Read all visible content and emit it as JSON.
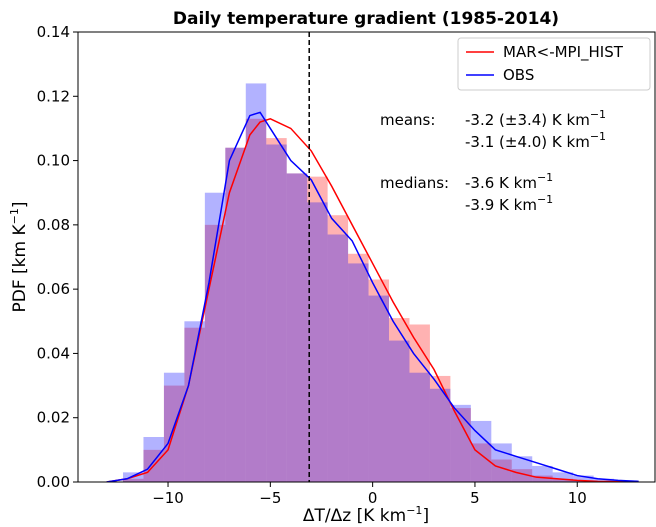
{
  "chart_data": {
    "type": "histogram",
    "title": "Daily temperature gradient (1985-2014)",
    "xlabel": {
      "text": "ΔT/Δz [K km",
      "sup": "−1",
      "tail": "]"
    },
    "ylabel": {
      "text": "PDF [km K",
      "sup": "−1",
      "tail": "]"
    },
    "xlim": [
      -14.4,
      13.8
    ],
    "ylim": [
      0,
      0.14
    ],
    "xticks": [
      {
        "value": -10,
        "label": "−10"
      },
      {
        "value": -5,
        "label": "−5"
      },
      0,
      5,
      10
    ],
    "yticks": [
      {
        "value": 0,
        "label": "0.00"
      },
      {
        "value": 0.02,
        "label": "0.02"
      },
      {
        "value": 0.04,
        "label": "0.04"
      },
      {
        "value": 0.06,
        "label": "0.06"
      },
      {
        "value": 0.08,
        "label": "0.08"
      },
      {
        "value": 0.1,
        "label": "0.10"
      },
      {
        "value": 0.12,
        "label": "0.12"
      },
      {
        "value": 0.14,
        "label": "0.14"
      }
    ],
    "bins": [
      -12.2,
      -11.2,
      -10.2,
      -9.2,
      -8.2,
      -7.2,
      -6.2,
      -5.2,
      -4.2,
      -3.2,
      -2.2,
      -1.2,
      -0.2,
      0.8,
      1.8,
      2.8,
      3.8,
      4.8,
      5.8,
      6.8,
      7.8,
      8.8,
      9.8,
      10.8,
      11.8,
      12.8
    ],
    "hist_series": [
      {
        "color": "#ff0000",
        "alpha": 0.3,
        "values": [
          0.001,
          0.01,
          0.03,
          0.048,
          0.08,
          0.104,
          0.113,
          0.107,
          0.096,
          0.095,
          0.083,
          0.071,
          0.063,
          0.051,
          0.049,
          0.033,
          0.023,
          0.012,
          0.007,
          0.004,
          0.002,
          0.001,
          0.0005,
          0.0003,
          0.0001
        ]
      },
      {
        "color": "#0000ff",
        "alpha": 0.3,
        "values": [
          0.003,
          0.014,
          0.034,
          0.05,
          0.09,
          0.104,
          0.124,
          0.105,
          0.096,
          0.087,
          0.077,
          0.068,
          0.058,
          0.044,
          0.034,
          0.029,
          0.024,
          0.019,
          0.012,
          0.008,
          0.005,
          0.003,
          0.002,
          0.001,
          0.0005
        ]
      }
    ],
    "x": [
      -13,
      -12,
      -11,
      -10,
      -9,
      -8,
      -7,
      -6,
      -5.5,
      -5,
      -4,
      -3,
      -2,
      -1,
      0,
      1,
      2,
      3,
      4,
      5,
      6,
      7,
      8,
      9,
      10,
      11,
      12,
      13
    ],
    "series": [
      {
        "name": "MAR<-MPI_HIST",
        "color": "#ff0000",
        "values": [
          0,
          0.001,
          0.003,
          0.01,
          0.03,
          0.06,
          0.09,
          0.108,
          0.112,
          0.113,
          0.11,
          0.103,
          0.092,
          0.08,
          0.068,
          0.056,
          0.045,
          0.035,
          0.022,
          0.01,
          0.005,
          0.003,
          0.0015,
          0.001,
          0.0005,
          0.0002,
          0.0001,
          0
        ]
      },
      {
        "name": "OBS",
        "color": "#0000ff",
        "values": [
          0,
          0.001,
          0.004,
          0.012,
          0.03,
          0.062,
          0.1,
          0.114,
          0.115,
          0.11,
          0.1,
          0.094,
          0.082,
          0.075,
          0.062,
          0.05,
          0.04,
          0.032,
          0.023,
          0.016,
          0.01,
          0.008,
          0.006,
          0.004,
          0.002,
          0.001,
          0.0005,
          0.0002
        ]
      }
    ],
    "vline": -3.1,
    "legend": "upper right",
    "annotations": [
      {
        "label": "means:",
        "lines": [
          {
            "text": "-3.2 (±3.4) K km",
            "sup": "−1",
            "color": "#ff0000"
          },
          {
            "text": "-3.1 (±4.0) K km",
            "sup": "−1",
            "color": "#0000ff"
          }
        ]
      },
      {
        "label": "medians:",
        "lines": [
          {
            "text": "-3.6 K km",
            "sup": "−1",
            "color": "#ff0000"
          },
          {
            "text": "-3.9 K km",
            "sup": "−1",
            "color": "#0000ff"
          }
        ]
      }
    ]
  }
}
